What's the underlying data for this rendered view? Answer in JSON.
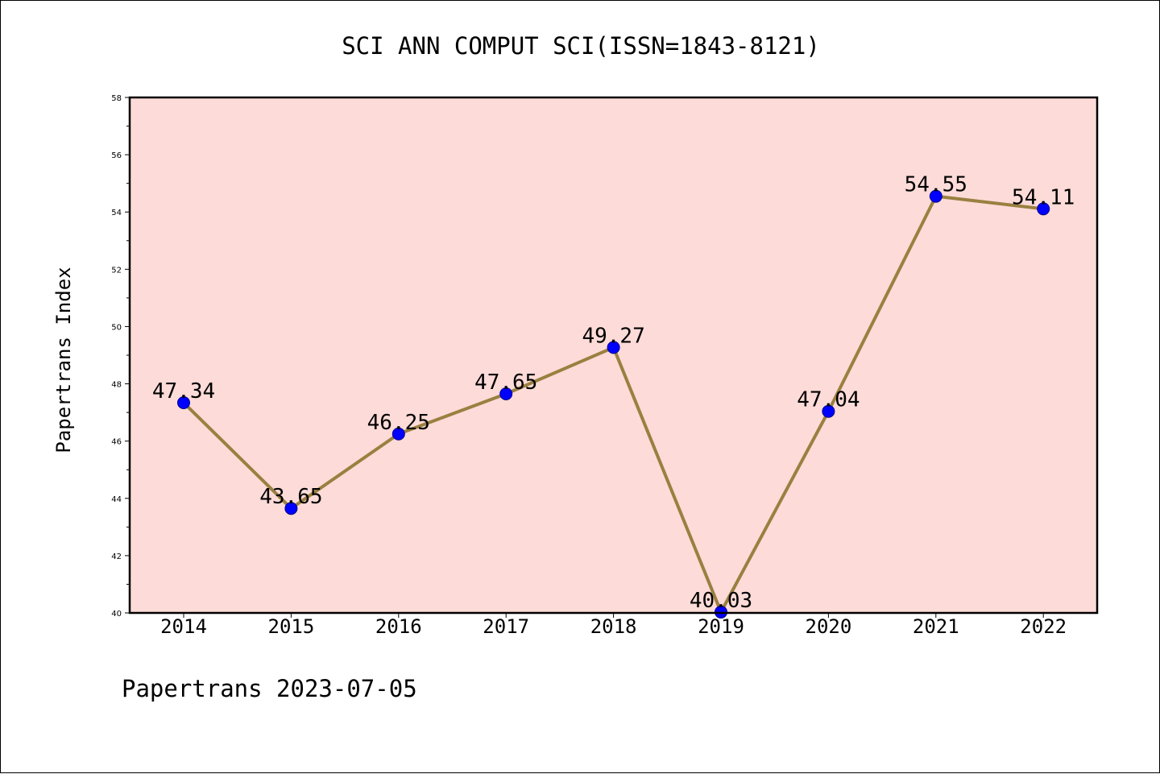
{
  "title": "SCI ANN COMPUT SCI(ISSN=1843-8121)",
  "footer": "Papertrans 2023-07-05",
  "colors": {
    "plot_background": "#fddbd8",
    "line": "#9a8040",
    "marker": "#0000ff",
    "marker_edge": "#00008b",
    "axis": "#000000"
  },
  "chart_data": {
    "type": "line",
    "title": "SCI ANN COMPUT SCI(ISSN=1843-8121)",
    "xlabel": "",
    "ylabel": "Papertrans Index",
    "ylim": [
      40,
      58
    ],
    "yticks": [
      "40",
      "42",
      "44",
      "46",
      "48",
      "50",
      "52",
      "54",
      "56",
      "58"
    ],
    "grid": false,
    "categories": [
      "2014",
      "2015",
      "2016",
      "2017",
      "2018",
      "2019",
      "2020",
      "2021",
      "2022"
    ],
    "values": [
      47.34,
      43.65,
      46.25,
      47.65,
      49.27,
      40.03,
      47.04,
      54.55,
      54.11
    ],
    "data_labels": [
      "47.34",
      "43.65",
      "46.25",
      "47.65",
      "49.27",
      "40.03",
      "47.04",
      "54.55",
      "54.11"
    ]
  }
}
